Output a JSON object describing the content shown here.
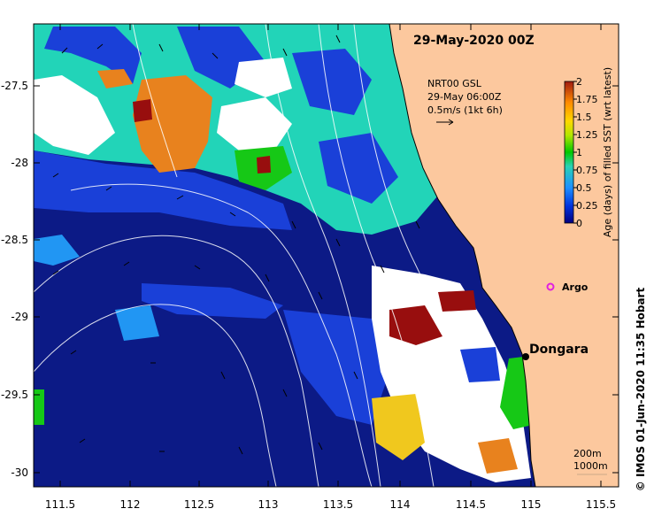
{
  "map": {
    "title": "29-May-2020 00Z",
    "lon_ticks": [
      "111.5",
      "112",
      "112.5",
      "113",
      "113.5",
      "114",
      "114.5",
      "115",
      "115.5"
    ],
    "lat_ticks": [
      "-27.5",
      "-28",
      "-28.5",
      "-29",
      "-29.5",
      "-30"
    ],
    "lon_range": [
      111.3,
      115.6
    ],
    "lat_range": [
      -30.1,
      -27.1
    ]
  },
  "current_legend": {
    "line1": "NRT00 GSL",
    "line2": "29-May 06:00Z",
    "line3": "0.5m/s (1kt 6h)"
  },
  "colorbar": {
    "label": "Age (days) of filled SST (wrt latest)",
    "ticks": [
      "2",
      "1.75",
      "1.5",
      "1.25",
      "1",
      "0.75",
      "0.5",
      "0.25",
      "0"
    ],
    "colors": [
      "#000080",
      "#0022cc",
      "#1e90ff",
      "#3cb4ff",
      "#28d2b4",
      "#00c800",
      "#b4e600",
      "#ffd700",
      "#ff8c00",
      "#a01a10"
    ]
  },
  "places": {
    "argo": "Argo",
    "dongara": "Dongara"
  },
  "contour_scale": {
    "line1": "200m",
    "line2": "1000m"
  },
  "credit": "© IMOS 01-Jun-2020 11:35 Hobart",
  "colors": {
    "land": "#fcc89e",
    "deep_navy": "#0c1a86",
    "blue": "#1a40d8",
    "light_blue": "#2196f3",
    "teal": "#22d4b8",
    "green": "#16c816",
    "orange": "#e8821e",
    "maroon": "#980e0e",
    "yellow": "#f0c81e"
  }
}
